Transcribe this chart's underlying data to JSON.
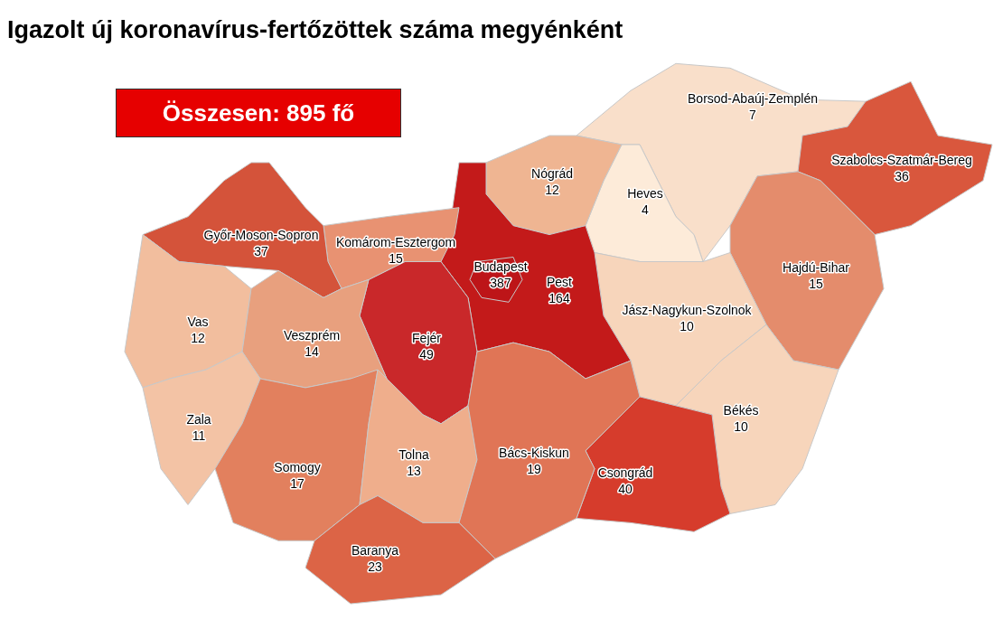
{
  "chart_data": {
    "type": "other",
    "title": "Igazolt új koronavírus-fertőzöttek száma megyénként",
    "subtitle": "Összesen: 895 fő",
    "categories": [
      "Borsod-Abaúj-Zemplén",
      "Heves",
      "Nógrád",
      "Szabolcs-Szatmár-Bereg",
      "Hajdú-Bihar",
      "Jász-Nagykun-Szolnok",
      "Békés",
      "Csongrád",
      "Pest",
      "Budapest",
      "Fejér",
      "Komárom-Esztergom",
      "Győr-Moson-Sopron",
      "Vas",
      "Veszprém",
      "Zala",
      "Somogy",
      "Tolna",
      "Bács-Kiskun",
      "Baranya"
    ],
    "values": [
      7,
      4,
      12,
      36,
      15,
      10,
      10,
      40,
      164,
      387,
      49,
      15,
      37,
      12,
      14,
      11,
      17,
      13,
      19,
      23
    ],
    "colors": [
      "#f9dfca",
      "#fdebd9",
      "#efb592",
      "#d9573d",
      "#e48c6c",
      "#f7d5bb",
      "#f7d5bb",
      "#d63c2c",
      "#c31a1a",
      "#bd1518",
      "#c9282a",
      "#e89272",
      "#d4533a",
      "#f2be9e",
      "#e8a07e",
      "#f3c3a5",
      "#e2805e",
      "#efae8c",
      "#e07556",
      "#dc6446"
    ],
    "data_labels": true
  }
}
